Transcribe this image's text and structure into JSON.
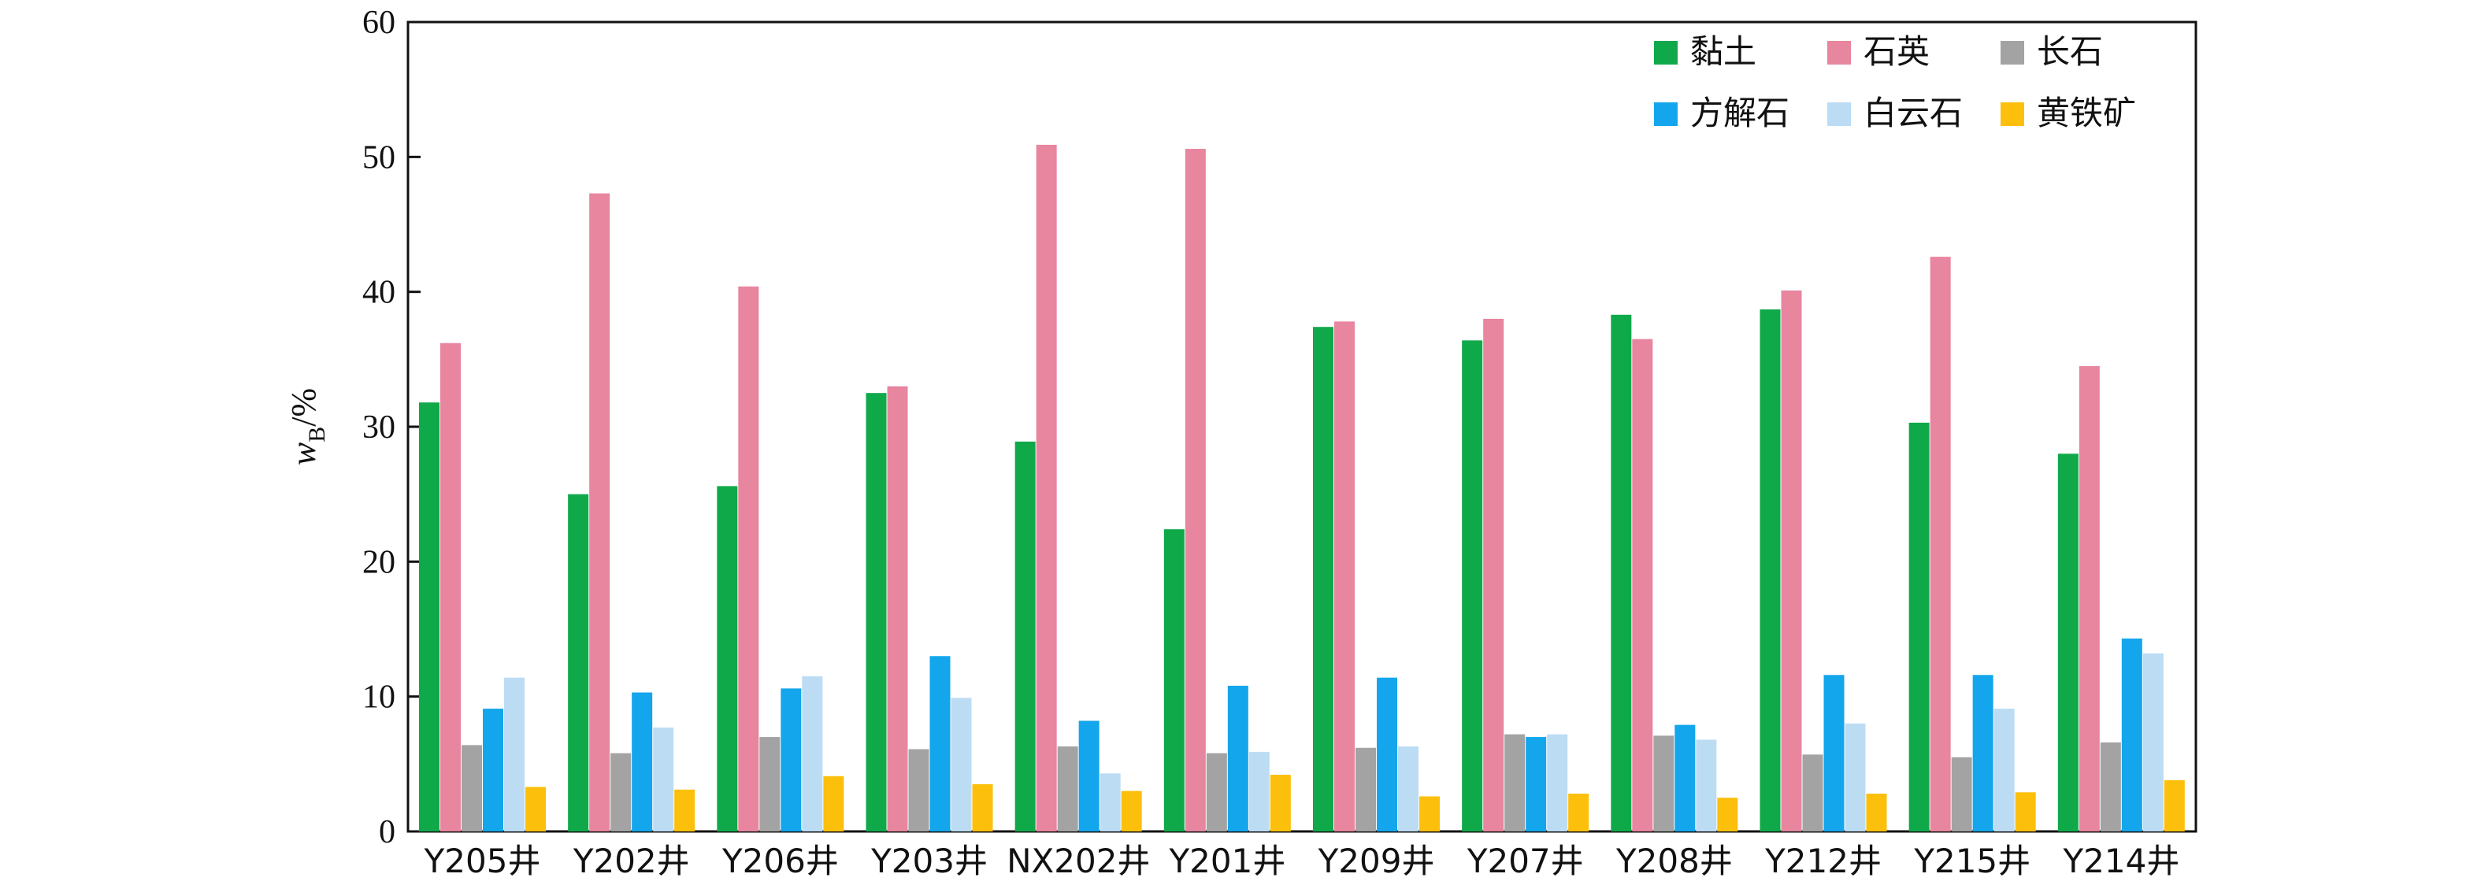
{
  "chart_data": {
    "type": "bar",
    "categories": [
      "Y205井",
      "Y202井",
      "Y206井",
      "Y203井",
      "NX202井",
      "Y201井",
      "Y209井",
      "Y207井",
      "Y208井",
      "Y212井",
      "Y215井",
      "Y214井"
    ],
    "series": [
      {
        "name": "黏土",
        "color": "#0fa94a",
        "values": [
          31.8,
          25.0,
          25.6,
          32.5,
          28.9,
          22.4,
          37.4,
          36.4,
          38.3,
          38.7,
          30.3,
          28.0
        ]
      },
      {
        "name": "石英",
        "color": "#e8859f",
        "values": [
          36.2,
          47.3,
          40.4,
          33.0,
          50.9,
          50.6,
          37.8,
          38.0,
          36.5,
          40.1,
          42.6,
          34.5
        ]
      },
      {
        "name": "长石",
        "color": "#a3a3a3",
        "values": [
          6.4,
          5.8,
          7.0,
          6.1,
          6.3,
          5.8,
          6.2,
          7.2,
          7.1,
          5.7,
          5.5,
          6.6
        ]
      },
      {
        "name": "方解石",
        "color": "#13a6ec",
        "values": [
          9.1,
          10.3,
          10.6,
          13.0,
          8.2,
          10.8,
          11.4,
          7.0,
          7.9,
          11.6,
          11.6,
          14.3
        ]
      },
      {
        "name": "白云石",
        "color": "#bcdcf4",
        "values": [
          11.4,
          7.7,
          11.5,
          9.9,
          4.3,
          5.9,
          6.3,
          7.2,
          6.8,
          8.0,
          9.1,
          13.2
        ]
      },
      {
        "name": "黄铁矿",
        "color": "#fcbf0b",
        "values": [
          3.3,
          3.1,
          4.1,
          3.5,
          3.0,
          4.2,
          2.6,
          2.8,
          2.5,
          2.8,
          2.9,
          3.8
        ]
      }
    ],
    "ylabel_main": "w",
    "ylabel_sub": "B",
    "ylabel_unit": "/%",
    "ylim": [
      0,
      60
    ],
    "yticks": [
      "0",
      "10",
      "20",
      "30",
      "40",
      "50",
      "60"
    ],
    "legend_position": "top-right",
    "grid": false
  }
}
